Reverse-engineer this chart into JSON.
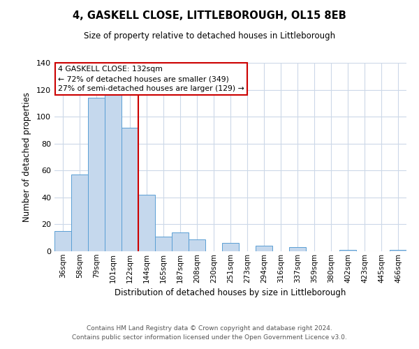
{
  "title": "4, GASKELL CLOSE, LITTLEBOROUGH, OL15 8EB",
  "subtitle": "Size of property relative to detached houses in Littleborough",
  "xlabel": "Distribution of detached houses by size in Littleborough",
  "ylabel": "Number of detached properties",
  "bar_labels": [
    "36sqm",
    "58sqm",
    "79sqm",
    "101sqm",
    "122sqm",
    "144sqm",
    "165sqm",
    "187sqm",
    "208sqm",
    "230sqm",
    "251sqm",
    "273sqm",
    "294sqm",
    "316sqm",
    "337sqm",
    "359sqm",
    "380sqm",
    "402sqm",
    "423sqm",
    "445sqm",
    "466sqm"
  ],
  "bar_values": [
    15,
    57,
    114,
    118,
    92,
    42,
    11,
    14,
    9,
    0,
    6,
    0,
    4,
    0,
    3,
    0,
    0,
    1,
    0,
    0,
    1
  ],
  "bar_color": "#c5d8ed",
  "bar_edge_color": "#5a9fd4",
  "ylim": [
    0,
    140
  ],
  "yticks": [
    0,
    20,
    40,
    60,
    80,
    100,
    120,
    140
  ],
  "vline_color": "#cc0000",
  "annotation_title": "4 GASKELL CLOSE: 132sqm",
  "annotation_line1": "← 72% of detached houses are smaller (349)",
  "annotation_line2": "27% of semi-detached houses are larger (129) →",
  "annotation_box_color": "#ffffff",
  "annotation_box_edge_color": "#cc0000",
  "footer_line1": "Contains HM Land Registry data © Crown copyright and database right 2024.",
  "footer_line2": "Contains public sector information licensed under the Open Government Licence v3.0.",
  "background_color": "#ffffff",
  "grid_color": "#ccd8e8"
}
